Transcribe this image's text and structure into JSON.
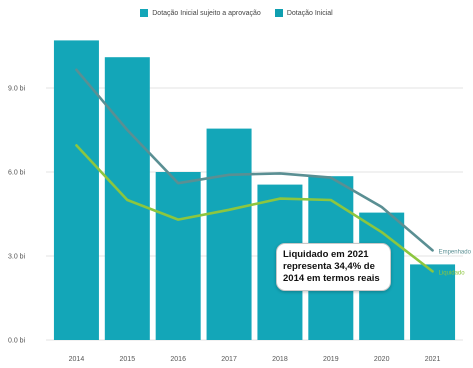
{
  "chart_data": {
    "type": "bar",
    "categories": [
      "2014",
      "2015",
      "2016",
      "2017",
      "2018",
      "2019",
      "2020",
      "2021"
    ],
    "y_ticks": [
      "0.0 bi",
      "3.0 bi",
      "6.0 bi",
      "9.0 bi"
    ],
    "ylim": [
      0,
      11.2
    ],
    "grid": true,
    "legend": {
      "placement": "top",
      "items": [
        "Dotação Inicial sujeito a aprovação",
        "Dotação Inicial"
      ]
    },
    "series": [
      {
        "name": "Dotação Inicial",
        "type": "bar",
        "color": "#13a6b8",
        "values": [
          10.7,
          10.1,
          6.0,
          7.55,
          5.55,
          5.85,
          4.55,
          2.7
        ]
      },
      {
        "name": "Empenhado",
        "type": "line",
        "color": "#5a8f93",
        "values": [
          9.65,
          7.5,
          5.6,
          5.9,
          5.95,
          5.8,
          4.75,
          3.2
        ]
      },
      {
        "name": "Liquidado",
        "type": "line",
        "color": "#8cc63f",
        "values": [
          6.95,
          5.0,
          4.3,
          4.65,
          5.05,
          5.0,
          3.85,
          2.45
        ]
      }
    ],
    "annotation": "Liquidado em 2021 representa 34,4% de 2014 em termos reais"
  },
  "colors": {
    "legend_sujeito": "#13a6b8",
    "legend_inicial": "#0f9fb0",
    "grid": "#e3e3e3",
    "axis_text": "#555555"
  }
}
